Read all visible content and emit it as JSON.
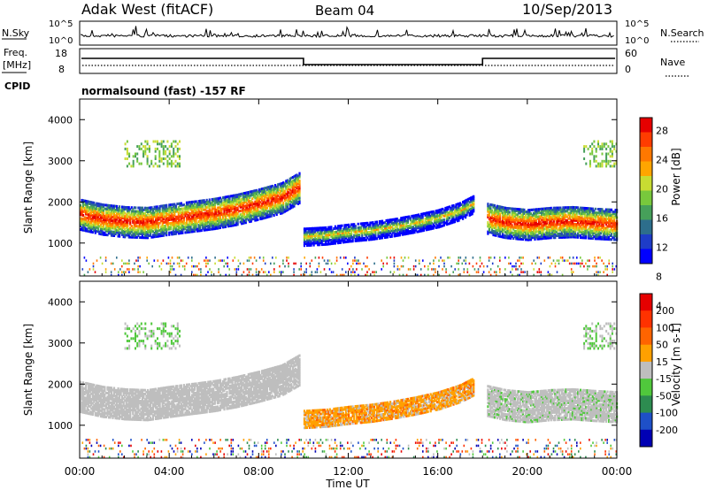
{
  "header": {
    "station": "Adak West (fitACF)",
    "beam": "Beam 04",
    "date": "10/Sep/2013"
  },
  "strips": {
    "nsky_label": "N.Sky",
    "nsky_ticks": [
      "10^5",
      "10^0"
    ],
    "nsearch_label": "N.Search",
    "nsearch_ticks": [
      "10^5",
      "10^0"
    ],
    "freq_label_1": "Freq.",
    "freq_label_2": "[MHz]",
    "freq_ticks": [
      "18",
      "8"
    ],
    "nave_label": "Nave",
    "nave_ticks": [
      "60",
      "0"
    ],
    "cpid_label": "CPID",
    "cpid_text": "normalsound (fast) -157 RF"
  },
  "colors": {
    "background": "#ffffff",
    "gray_scatter": "#bebebe"
  },
  "chart_data": [
    {
      "type": "heatmap",
      "name": "power",
      "ylabel": "Slant Range [km]",
      "yticks": [
        1000,
        2000,
        3000,
        4000
      ],
      "ylim": [
        200,
        4500
      ],
      "xlim": [
        0,
        24
      ],
      "xticks": [
        0,
        4,
        8,
        12,
        16,
        20,
        24
      ],
      "colorbar": {
        "label": "Power [dB]",
        "ticks": [
          4,
          8,
          12,
          16,
          20,
          24,
          28
        ],
        "levels": [
          "#0000ff",
          "#1e3cc8",
          "#2d6e8c",
          "#46a05a",
          "#78c83c",
          "#c8dc32",
          "#ffa500",
          "#ff7800",
          "#ff3c00",
          "#e60000"
        ]
      },
      "echo_bands": [
        {
          "t": [
            0,
            1,
            2,
            3,
            4,
            5,
            6,
            7,
            8,
            9,
            9.8
          ],
          "center_km": [
            1700,
            1580,
            1520,
            1500,
            1580,
            1650,
            1720,
            1820,
            1950,
            2100,
            2350
          ]
        },
        {
          "t": [
            10,
            11,
            12,
            13,
            14,
            15,
            16,
            17,
            17.6
          ],
          "center_km": [
            1150,
            1180,
            1250,
            1300,
            1380,
            1480,
            1600,
            1780,
            1950
          ]
        },
        {
          "t": [
            18.2,
            19,
            20,
            21,
            22,
            23,
            24
          ],
          "center_km": [
            1600,
            1500,
            1450,
            1500,
            1520,
            1480,
            1450
          ]
        }
      ]
    },
    {
      "type": "heatmap",
      "name": "velocity",
      "ylabel": "Slant Range [km]",
      "xlabel": "Time UT",
      "yticks": [
        1000,
        2000,
        3000,
        4000
      ],
      "ylim": [
        200,
        4500
      ],
      "xlim": [
        0,
        24
      ],
      "xticks": [
        0,
        4,
        8,
        12,
        16,
        20,
        24
      ],
      "xticklabels": [
        "00:00",
        "04:00",
        "08:00",
        "12:00",
        "16:00",
        "20:00",
        "00:00"
      ],
      "colorbar": {
        "label": "Velocity [m s-1]",
        "ticks": [
          200,
          100,
          50,
          15,
          -15,
          -50,
          -100,
          -200
        ],
        "levels": [
          "#0000b4",
          "#1e50c8",
          "#2d8c50",
          "#50c83c",
          "#bebebe",
          "#ffa000",
          "#ff6400",
          "#ff3200",
          "#e60000"
        ]
      }
    }
  ]
}
